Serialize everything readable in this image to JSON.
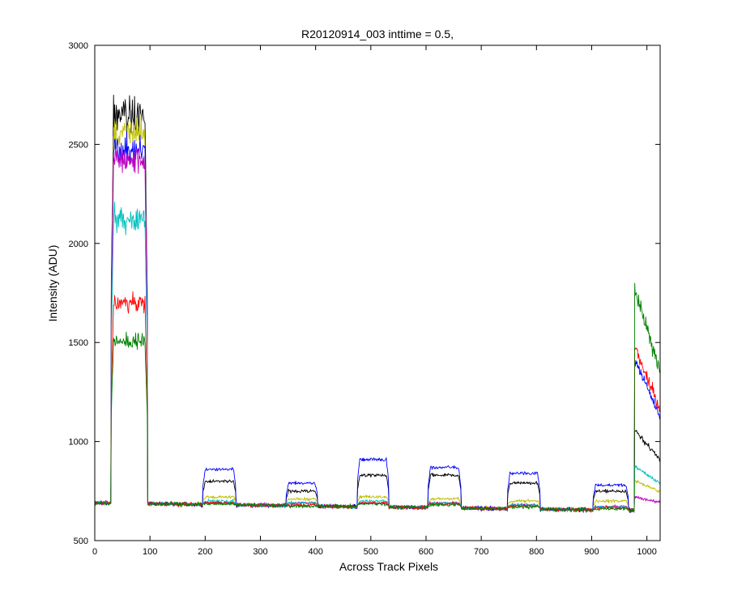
{
  "chart_data": {
    "type": "line",
    "title": "R20120914_003 inttime = 0.5,",
    "xlabel": "Across Track Pixels",
    "ylabel": "Intensity (ADU)",
    "xlim": [
      0,
      1024
    ],
    "ylim": [
      500,
      3000
    ],
    "xticks": [
      "0",
      "100",
      "200",
      "300",
      "400",
      "500",
      "600",
      "700",
      "800",
      "900",
      "1000"
    ],
    "yticks": [
      "500",
      "1000",
      "1500",
      "2000",
      "2500",
      "3000"
    ],
    "grid": false,
    "legend": "none",
    "baseline": {
      "start": 690,
      "end": 650
    },
    "segments": [
      {
        "x0": 30,
        "x1": 95
      },
      {
        "x0": 196,
        "x1": 255
      },
      {
        "x0": 347,
        "x1": 403
      },
      {
        "x0": 476,
        "x1": 532
      },
      {
        "x0": 604,
        "x1": 663
      },
      {
        "x0": 748,
        "x1": 806
      },
      {
        "x0": 903,
        "x1": 966
      },
      {
        "x0": 978,
        "x1": 1024
      }
    ],
    "series": [
      {
        "color": "#000000",
        "levels": [
          2650,
          800,
          750,
          830,
          830,
          790,
          750,
          1000
        ]
      },
      {
        "color": "#bfbf00",
        "levels": [
          2560,
          720,
          710,
          720,
          710,
          700,
          700,
          780
        ]
      },
      {
        "color": "#0000ff",
        "levels": [
          2470,
          860,
          790,
          910,
          870,
          840,
          780,
          1300
        ]
      },
      {
        "color": "#bf00bf",
        "levels": [
          2420,
          690,
          690,
          690,
          690,
          680,
          670,
          710
        ]
      },
      {
        "color": "#00bfbf",
        "levels": [
          2130,
          700,
          690,
          700,
          690,
          680,
          670,
          840
        ]
      },
      {
        "color": "#ff0000",
        "levels": [
          1700,
          690,
          680,
          690,
          685,
          675,
          665,
          1350
        ]
      },
      {
        "color": "#008000",
        "levels": [
          1510,
          685,
          675,
          685,
          680,
          670,
          660,
          1600
        ]
      }
    ]
  }
}
